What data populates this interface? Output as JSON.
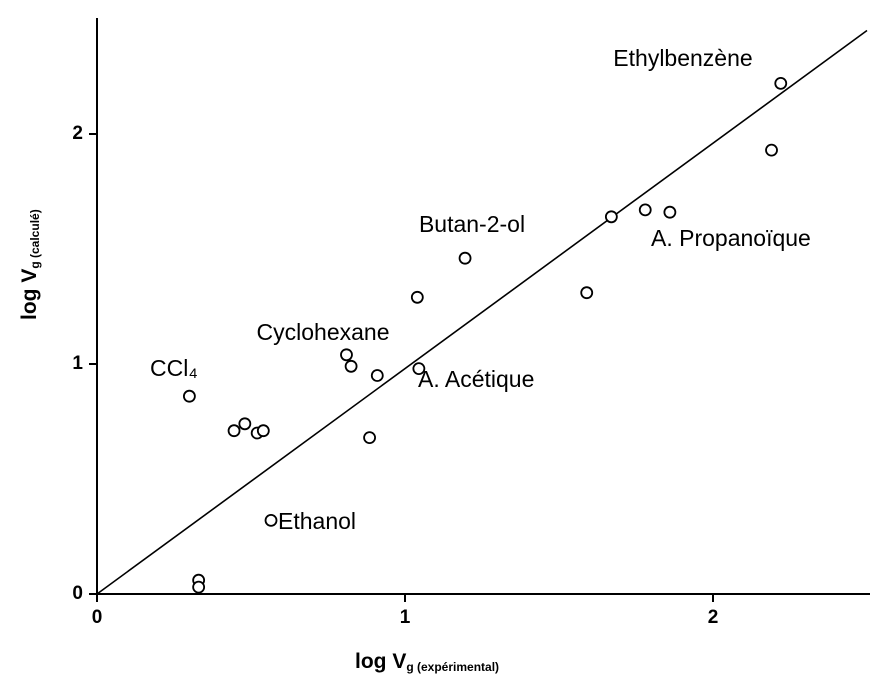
{
  "chart_data": {
    "type": "scatter",
    "x_label": {
      "main": "log V",
      "sub": "g (expérimental)"
    },
    "y_label": {
      "main": "log V",
      "sub": "g (calculé)"
    },
    "xlim": [
      0,
      2.5
    ],
    "ylim": [
      0,
      2.5
    ],
    "xticks": [
      0,
      1,
      2
    ],
    "yticks": [
      0,
      1,
      2
    ],
    "series": [
      {
        "color": "#000000",
        "x": [
          0.3,
          0.445,
          0.48,
          0.52,
          0.54,
          0.33,
          0.33,
          0.565,
          0.81,
          0.825,
          0.91,
          0.885,
          1.04,
          1.045,
          1.195,
          1.59,
          1.67,
          1.78,
          1.86,
          2.19,
          2.22
        ],
        "values": [
          0.86,
          0.71,
          0.74,
          0.7,
          0.71,
          0.06,
          0.03,
          0.32,
          1.04,
          0.99,
          0.95,
          0.68,
          1.29,
          0.98,
          1.46,
          1.31,
          1.64,
          1.67,
          1.66,
          1.93,
          2.22
        ]
      }
    ],
    "fit_line": {
      "x": [
        0,
        2.5
      ],
      "y": [
        0,
        2.45
      ]
    },
    "annotations": [
      "Ethylbenzène",
      "A. Propanoïque",
      "Butan-2-ol",
      "Cyclohexane",
      "CCl₄",
      "A. Acétique",
      "Ethanol"
    ]
  }
}
